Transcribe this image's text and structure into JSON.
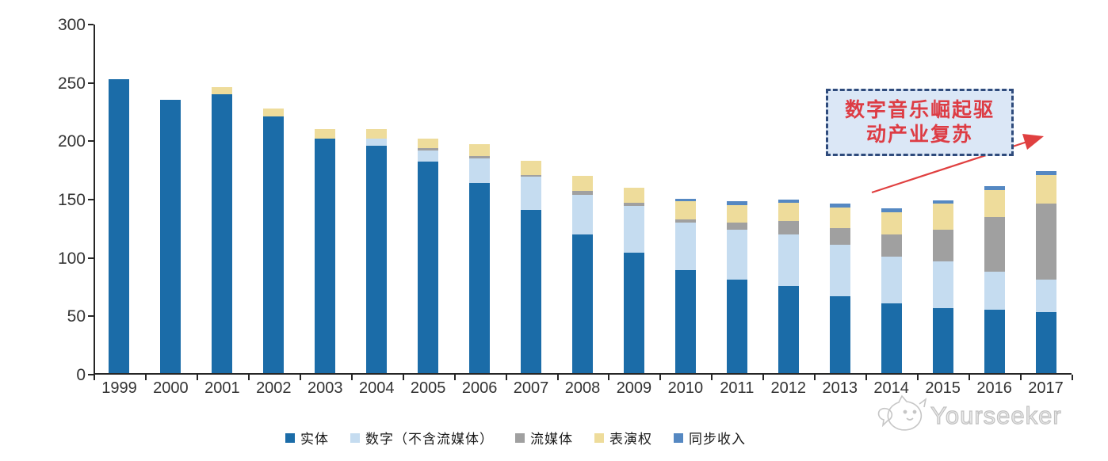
{
  "chart_data": {
    "type": "bar",
    "stacked": true,
    "title": "",
    "xlabel": "",
    "ylabel": "",
    "categories": [
      "1999",
      "2000",
      "2001",
      "2002",
      "2003",
      "2004",
      "2005",
      "2006",
      "2007",
      "2008",
      "2009",
      "2010",
      "2011",
      "2012",
      "2013",
      "2014",
      "2015",
      "2016",
      "2017"
    ],
    "series": [
      {
        "name": "实体",
        "color": "#1b6ca8",
        "values": [
          252,
          234,
          239,
          220,
          201,
          195,
          181,
          163,
          140,
          119,
          103,
          88,
          80,
          75,
          66,
          60,
          56,
          54,
          52
        ]
      },
      {
        "name": "数字（不含流媒体）",
        "color": "#c5dcf0",
        "values": [
          0,
          0,
          0,
          0,
          0,
          6,
          10,
          21,
          28,
          34,
          40,
          41,
          43,
          44,
          44,
          40,
          40,
          33,
          28
        ]
      },
      {
        "name": "流媒体",
        "color": "#a0a0a0",
        "values": [
          0,
          0,
          0,
          0,
          0,
          0,
          2,
          2,
          2,
          3,
          3,
          3,
          6,
          11,
          14,
          19,
          27,
          47,
          65
        ]
      },
      {
        "name": "表演权",
        "color": "#eedc9b",
        "values": [
          0,
          0,
          6,
          7,
          8,
          8,
          8,
          10,
          12,
          13,
          13,
          15,
          15,
          16,
          18,
          19,
          22,
          23,
          25
        ]
      },
      {
        "name": "同步收入",
        "color": "#5588c2",
        "values": [
          0,
          0,
          0,
          0,
          0,
          0,
          0,
          0,
          0,
          0,
          0,
          2,
          3,
          3,
          3,
          3,
          3,
          3,
          3
        ]
      }
    ],
    "ylim": [
      0,
      300
    ],
    "yticks": [
      0,
      50,
      100,
      150,
      200,
      250,
      300
    ],
    "grid": false,
    "legend_position": "bottom"
  },
  "annotation": {
    "line1": "数字音乐崛起驱",
    "line2": "动产业复苏",
    "text_color": "#dd3c44",
    "box_fill": "#dbe7f6",
    "border_color": "#2f4b7c",
    "arrow_color": "#e04040"
  },
  "watermark": {
    "text": "Yourseeker",
    "color": "#c2c2c2",
    "logo_icon": "cat-logo-icon"
  }
}
